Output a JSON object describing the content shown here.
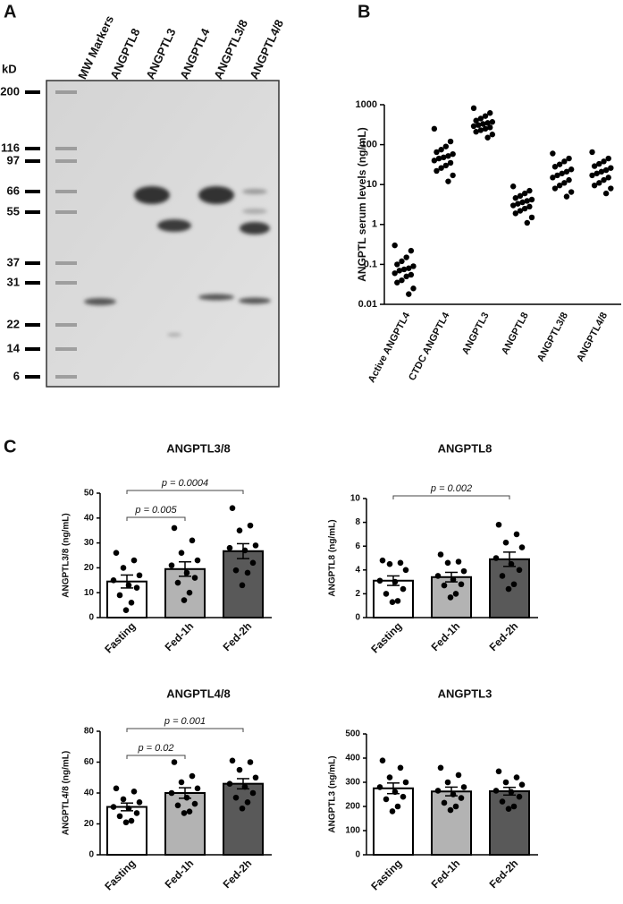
{
  "panels": [
    "A",
    "B",
    "C"
  ],
  "gel": {
    "unit_label": "kD",
    "lanes": [
      "MW Markers",
      "ANGPTL8",
      "ANGPTL3",
      "ANGPTL4",
      "ANGPTL3/8",
      "ANGPTL4/8"
    ],
    "markers": [
      200,
      116,
      97,
      66,
      55,
      37,
      31,
      22,
      14,
      6
    ]
  },
  "chart_data": [
    {
      "type": "strip",
      "ylabel": "ANGPTL serum levels (ng/mL)",
      "log_scale": true,
      "categories": [
        "Active ANGPTL4",
        "CTDC ANGPTL4",
        "ANGPTL3",
        "ANGPTL8",
        "ANGPTL3/8",
        "ANGPTL4/8"
      ],
      "points": [
        [
          0.3,
          0.22,
          0.15,
          0.12,
          0.1,
          0.09,
          0.08,
          0.075,
          0.07,
          0.06,
          0.055,
          0.05,
          0.04,
          0.035,
          0.025,
          0.018
        ],
        [
          250,
          120,
          90,
          75,
          65,
          58,
          52,
          48,
          45,
          40,
          35,
          30,
          26,
          22,
          17,
          12
        ],
        [
          820,
          620,
          520,
          450,
          400,
          370,
          350,
          330,
          310,
          290,
          270,
          250,
          230,
          210,
          180,
          150
        ],
        [
          9,
          7,
          6,
          5.2,
          4.6,
          4.2,
          3.9,
          3.6,
          3.3,
          3,
          2.8,
          2.5,
          2.2,
          1.9,
          1.5,
          1.1
        ],
        [
          60,
          45,
          38,
          32,
          28,
          24,
          21,
          19,
          17,
          15,
          13,
          11,
          9.5,
          8,
          6.5,
          5
        ],
        [
          65,
          45,
          38,
          33,
          29,
          26,
          23,
          21,
          19,
          17,
          15,
          13,
          11,
          9.5,
          8,
          6
        ]
      ],
      "color": "#000000",
      "ylim": [
        0.01,
        1000
      ],
      "yticks": [
        0.01,
        0.1,
        1,
        10,
        100,
        1000
      ]
    },
    {
      "type": "bar",
      "title": "ANGPTL3/8",
      "ylabel": "ANGPTL3/8 (ng/mL)",
      "categories": [
        "Fasting",
        "Fed-1h",
        "Fed-2h"
      ],
      "values": [
        14.5,
        19.5,
        26.7
      ],
      "errors": [
        2.6,
        2.9,
        3.0
      ],
      "colors": [
        "#ffffff",
        "#b3b3b3",
        "#595959"
      ],
      "points": [
        [
          26,
          23,
          20,
          17,
          15,
          13,
          12,
          9,
          6,
          3
        ],
        [
          36,
          31,
          26,
          23,
          21,
          18,
          16,
          14,
          10,
          7
        ],
        [
          44,
          37,
          35,
          29,
          28,
          27,
          22,
          19,
          18,
          13
        ]
      ],
      "ylim": [
        0,
        50
      ],
      "yticks": [
        0,
        10,
        20,
        30,
        40,
        50
      ],
      "annotations": [
        {
          "text": "p = 0.005",
          "between": [
            "Fasting",
            "Fed-1h"
          ]
        },
        {
          "text": "p = 0.0004",
          "between": [
            "Fasting",
            "Fed-2h"
          ]
        }
      ]
    },
    {
      "type": "bar",
      "title": "ANGPTL8",
      "ylabel": "ANGPTL8 (ng/mL)",
      "categories": [
        "Fasting",
        "Fed-1h",
        "Fed-2h"
      ],
      "values": [
        3.1,
        3.4,
        4.9
      ],
      "errors": [
        0.4,
        0.4,
        0.6
      ],
      "colors": [
        "#ffffff",
        "#b3b3b3",
        "#595959"
      ],
      "points": [
        [
          4.8,
          4.6,
          4.5,
          4.0,
          3.1,
          3.0,
          2.4,
          2.0,
          1.4,
          1.3
        ],
        [
          5.3,
          4.7,
          4.6,
          3.9,
          3.5,
          3.2,
          2.8,
          2.7,
          2.0,
          1.7
        ],
        [
          7.8,
          7.0,
          6.3,
          5.9,
          5.0,
          4.5,
          4.0,
          3.5,
          2.8,
          2.4
        ]
      ],
      "ylim": [
        0,
        10
      ],
      "yticks": [
        0,
        2,
        4,
        6,
        8,
        10
      ],
      "annotations": [
        {
          "text": "p = 0.002",
          "between": [
            "Fasting",
            "Fed-2h"
          ]
        }
      ]
    },
    {
      "type": "bar",
      "title": "ANGPTL4/8",
      "ylabel": "ANGPTL4/8 (ng/mL)",
      "categories": [
        "Fasting",
        "Fed-1h",
        "Fed-2h"
      ],
      "values": [
        31,
        40,
        46
      ],
      "errors": [
        2.5,
        3.4,
        3.3
      ],
      "colors": [
        "#ffffff",
        "#b3b3b3",
        "#595959"
      ],
      "points": [
        [
          43,
          41,
          36,
          34,
          31,
          30,
          27,
          25,
          22,
          21
        ],
        [
          60,
          51,
          47,
          43,
          40,
          37,
          33,
          32,
          28,
          27
        ],
        [
          61,
          60,
          55,
          50,
          46,
          44,
          40,
          37,
          34,
          30
        ]
      ],
      "ylim": [
        0,
        80
      ],
      "yticks": [
        0,
        20,
        40,
        60,
        80
      ],
      "annotations": [
        {
          "text": "p = 0.02",
          "between": [
            "Fasting",
            "Fed-1h"
          ]
        },
        {
          "text": "p = 0.001",
          "between": [
            "Fasting",
            "Fed-2h"
          ]
        }
      ]
    },
    {
      "type": "bar",
      "title": "ANGPTL3",
      "ylabel": "ANGPTL3 (ng/mL)",
      "categories": [
        "Fasting",
        "Fed-1h",
        "Fed-2h"
      ],
      "values": [
        275,
        262,
        263
      ],
      "errors": [
        22,
        18,
        16
      ],
      "colors": [
        "#ffffff",
        "#b3b3b3",
        "#595959"
      ],
      "points": [
        [
          390,
          360,
          320,
          300,
          280,
          260,
          240,
          230,
          200,
          180
        ],
        [
          360,
          330,
          300,
          280,
          265,
          250,
          235,
          215,
          200,
          185
        ],
        [
          345,
          320,
          300,
          290,
          265,
          260,
          240,
          220,
          200,
          190
        ]
      ],
      "ylim": [
        0,
        500
      ],
      "yticks": [
        0,
        100,
        200,
        300,
        400,
        500
      ],
      "annotations": []
    }
  ]
}
